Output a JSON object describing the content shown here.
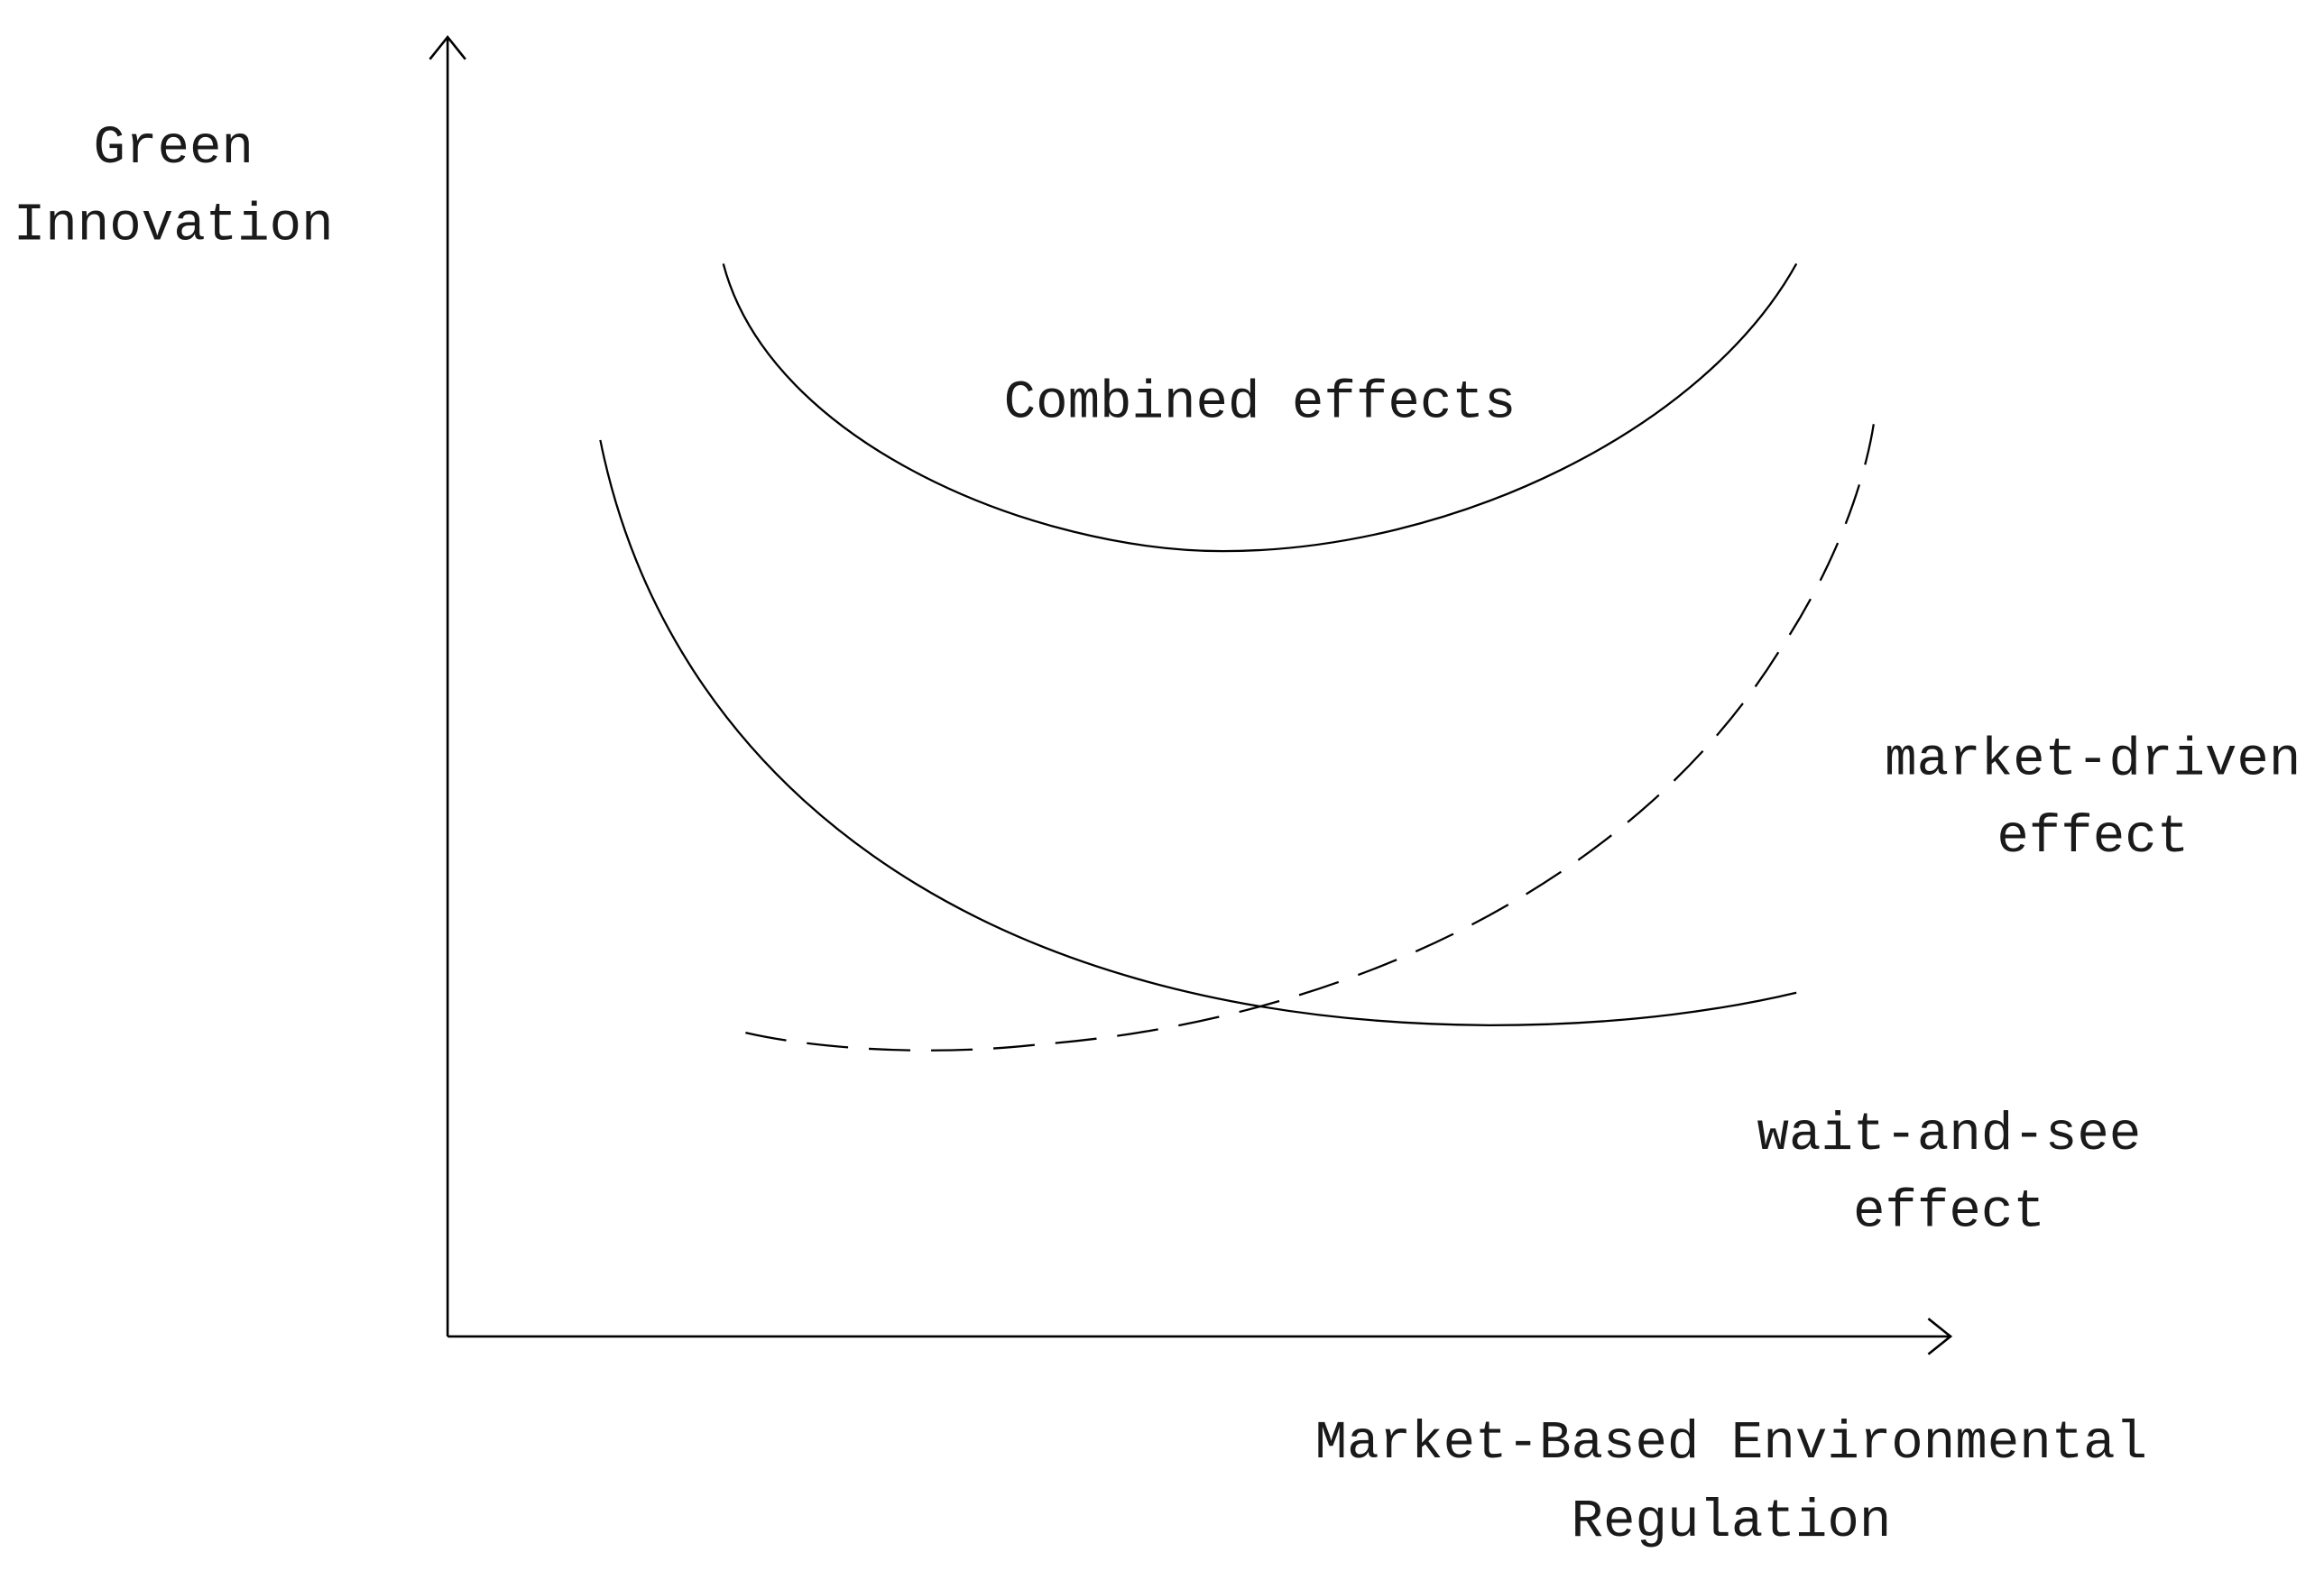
{
  "axes": {
    "y_label": {
      "lines": [
        "Green",
        "Innovation"
      ]
    },
    "x_label": {
      "lines": [
        "Market-Based Environmental",
        "Regulation"
      ]
    }
  },
  "curves": [
    {
      "label": {
        "lines": [
          "Combined effects"
        ]
      }
    },
    {
      "label": {
        "lines": [
          "market-driven",
          "effect"
        ]
      }
    },
    {
      "label": {
        "lines": [
          "wait-and-see",
          "effect"
        ]
      }
    }
  ]
}
